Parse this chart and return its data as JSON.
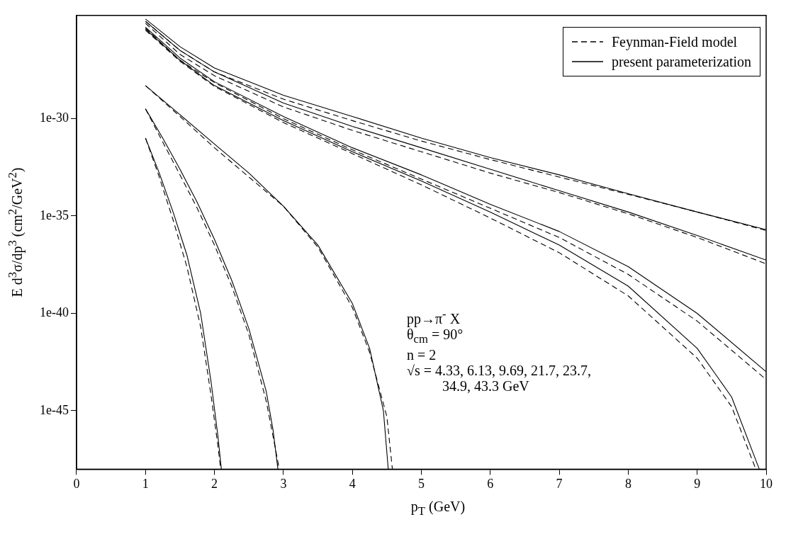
{
  "chart_data": {
    "type": "line",
    "xlabel": "p$_{T}$ (GeV)",
    "ylabel": "E d$^{3}$σ/dp$^{3}$ (cm$^{2}$/GeV$^{2}$)",
    "log": "y",
    "grid": false,
    "legend": "top right",
    "marker": "none",
    "xlim": [
      0,
      10
    ],
    "xticks": [
      0,
      1,
      2,
      3,
      4,
      5,
      6,
      7,
      8,
      9,
      10
    ],
    "ylim": [
      1e-48,
      2e-25
    ],
    "yticks": [
      1e-45,
      1e-40,
      1e-35,
      1e-30
    ],
    "annotations": [
      "pp→π$^{-}$ X",
      "θ$_{cm}$ = 90°",
      "n = 2",
      "√s = 4.33, 6.13, 9.69, 21.7, 23.7,",
      "34.9, 43.3 GeV"
    ],
    "series": [
      {
        "name": "Feynman-Field model",
        "color": "#000000",
        "line_style": "dashed",
        "x": [
          1,
          1.5,
          2,
          3,
          4,
          5,
          6,
          7,
          8,
          9,
          10
        ],
        "values": [
          1e-25,
          3.2e-27,
          2.5e-28,
          1e-29,
          7.9e-31,
          7.1e-32,
          7.9e-33,
          1e-33,
          1.3e-34,
          1.6e-35,
          1.8e-36
        ]
      },
      {
        "name": "present parameterization",
        "color": "#000000",
        "line_style": "solid",
        "x": [
          1,
          1.5,
          2,
          3,
          4,
          5,
          6,
          7,
          8,
          9,
          10
        ],
        "values": [
          1.3e-25,
          5e-27,
          4e-28,
          1.6e-29,
          1.3e-30,
          1e-31,
          1e-32,
          1.3e-33,
          1.4e-34,
          1.6e-35,
          2e-36
        ]
      },
      {
        "color": "#000000",
        "line_style": "dashed",
        "x": [
          1,
          1.5,
          2,
          3,
          4,
          5,
          6,
          7,
          8,
          9,
          10
        ],
        "values": [
          7.9e-26,
          2e-27,
          1.6e-28,
          4e-30,
          2.5e-31,
          2e-32,
          1.6e-33,
          1.6e-34,
          1.3e-35,
          7.9e-37,
          3.5e-38
        ]
      },
      {
        "color": "#000000",
        "line_style": "solid",
        "x": [
          1,
          1.5,
          2,
          3,
          4,
          5,
          6,
          7,
          8,
          9,
          10
        ],
        "values": [
          1e-25,
          3.2e-27,
          2.5e-28,
          6.3e-30,
          4e-31,
          3.2e-32,
          2.5e-33,
          2e-34,
          1.6e-35,
          1e-36,
          5.4e-38
        ]
      },
      {
        "color": "#000000",
        "line_style": "dashed",
        "x": [
          1,
          1.5,
          2,
          3,
          4,
          5,
          6,
          7,
          8,
          9,
          10
        ],
        "values": [
          4.5e-26,
          1e-27,
          7.1e-29,
          1e-30,
          2.5e-32,
          7.9e-34,
          2.5e-35,
          7.9e-37,
          1e-38,
          4e-41,
          4e-44
        ]
      },
      {
        "color": "#000000",
        "line_style": "solid",
        "x": [
          1,
          1.5,
          2,
          3,
          4,
          5,
          6,
          7,
          8,
          9,
          10
        ],
        "values": [
          5e-26,
          1.3e-27,
          7.9e-29,
          1.3e-30,
          3.2e-32,
          1.3e-33,
          4e-35,
          1.6e-36,
          2.5e-38,
          1e-40,
          1e-43
        ]
      },
      {
        "color": "#000000",
        "line_style": "dashed",
        "x": [
          1,
          1.5,
          2,
          3,
          4,
          5,
          6,
          7,
          8,
          9,
          9.5,
          9.85
        ],
        "values": [
          3.5e-26,
          8.9e-28,
          4.5e-29,
          6.3e-31,
          1.6e-32,
          4e-34,
          7.9e-36,
          1.3e-37,
          7.9e-40,
          5e-43,
          1.6e-45,
          1e-48
        ]
      },
      {
        "color": "#000000",
        "line_style": "solid",
        "x": [
          1,
          1.5,
          2,
          3,
          4,
          5,
          6,
          7,
          8,
          9,
          9.5,
          9.9
        ],
        "values": [
          4e-26,
          1e-27,
          5e-29,
          7.9e-31,
          2e-32,
          6.3e-34,
          1.6e-35,
          3.2e-37,
          2.5e-39,
          1.6e-42,
          5e-45,
          1e-48
        ]
      },
      {
        "color": "#000000",
        "line_style": "dashed",
        "x": [
          1,
          1.5,
          2,
          2.5,
          3,
          3.5,
          4,
          4.25,
          4.5,
          4.58
        ],
        "values": [
          5e-29,
          1.3e-30,
          3.2e-32,
          1e-33,
          3.2e-35,
          2.5e-37,
          2e-40,
          1e-42,
          5e-46,
          1e-48
        ]
      },
      {
        "color": "#000000",
        "line_style": "solid",
        "x": [
          1,
          1.5,
          2,
          2.5,
          3,
          3.5,
          4,
          4.25,
          4.45,
          4.52
        ],
        "values": [
          5e-29,
          1.6e-30,
          5e-32,
          1.6e-33,
          3.2e-35,
          3.2e-37,
          3.2e-40,
          1.6e-42,
          1e-45,
          1e-48
        ]
      },
      {
        "color": "#000000",
        "line_style": "dashed",
        "x": [
          1,
          1.25,
          1.5,
          1.75,
          2,
          2.25,
          2.5,
          2.75,
          2.87,
          2.94
        ],
        "values": [
          3.2e-30,
          6.3e-32,
          1.3e-33,
          2.5e-35,
          3.2e-37,
          2.5e-39,
          7.9e-42,
          3.2e-45,
          2e-47,
          1e-48
        ]
      },
      {
        "color": "#000000",
        "line_style": "solid",
        "x": [
          1,
          1.25,
          1.5,
          1.75,
          2,
          2.25,
          2.5,
          2.75,
          2.85,
          2.92
        ],
        "values": [
          3.2e-30,
          1e-31,
          2.5e-33,
          5e-35,
          6.3e-37,
          5e-39,
          1.6e-41,
          1e-44,
          1e-46,
          1e-48
        ]
      },
      {
        "color": "#000000",
        "line_style": "dashed",
        "x": [
          1,
          1.2,
          1.4,
          1.6,
          1.8,
          1.95,
          2.05,
          2.09
        ],
        "values": [
          1e-31,
          1e-33,
          6.3e-36,
          2.5e-38,
          2e-41,
          6.3e-45,
          1.6e-47,
          1e-48
        ]
      },
      {
        "color": "#000000",
        "line_style": "solid",
        "x": [
          1,
          1.2,
          1.4,
          1.6,
          1.8,
          1.95,
          2.05,
          2.1
        ],
        "values": [
          1e-31,
          1.6e-33,
          1.6e-35,
          1e-37,
          1e-40,
          3.2e-44,
          5e-47,
          1e-48
        ]
      }
    ]
  }
}
